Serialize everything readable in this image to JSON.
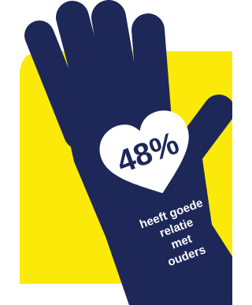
{
  "figure": {
    "stat": "48%",
    "caption_lines": [
      "heeft goede",
      "relatie",
      "met",
      "ouders"
    ]
  }
}
